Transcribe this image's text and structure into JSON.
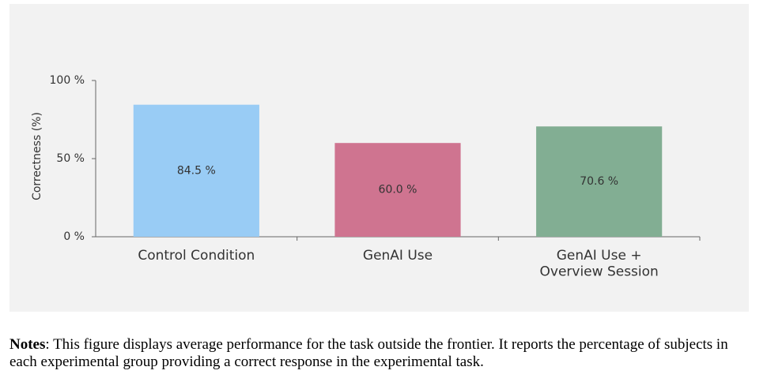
{
  "chart_data": {
    "type": "bar",
    "y_label": "Correctness (%)",
    "categories": [
      "Control Condition",
      "GenAI Use",
      "GenAI Use +\nOverview Session"
    ],
    "series": [
      {
        "name": "Correctness",
        "colors": [
          "#99ccf5",
          "#cf7490",
          "#82ae93"
        ],
        "values": [
          84.5,
          60.0,
          70.6
        ],
        "value_labels": [
          "84.5 %",
          "60.0 %",
          "70.6 %"
        ]
      }
    ],
    "ylim": [
      0,
      100
    ],
    "yticks": [
      {
        "value": 0,
        "label": "0 %"
      },
      {
        "value": 50,
        "label": "50 %"
      },
      {
        "value": 100,
        "label": "100 %"
      }
    ]
  },
  "notes": {
    "label": "Notes",
    "text": ": This figure displays average performance for the task outside the frontier. It reports the percentage of subjects in each experimental group providing a correct response in the experimental task."
  }
}
